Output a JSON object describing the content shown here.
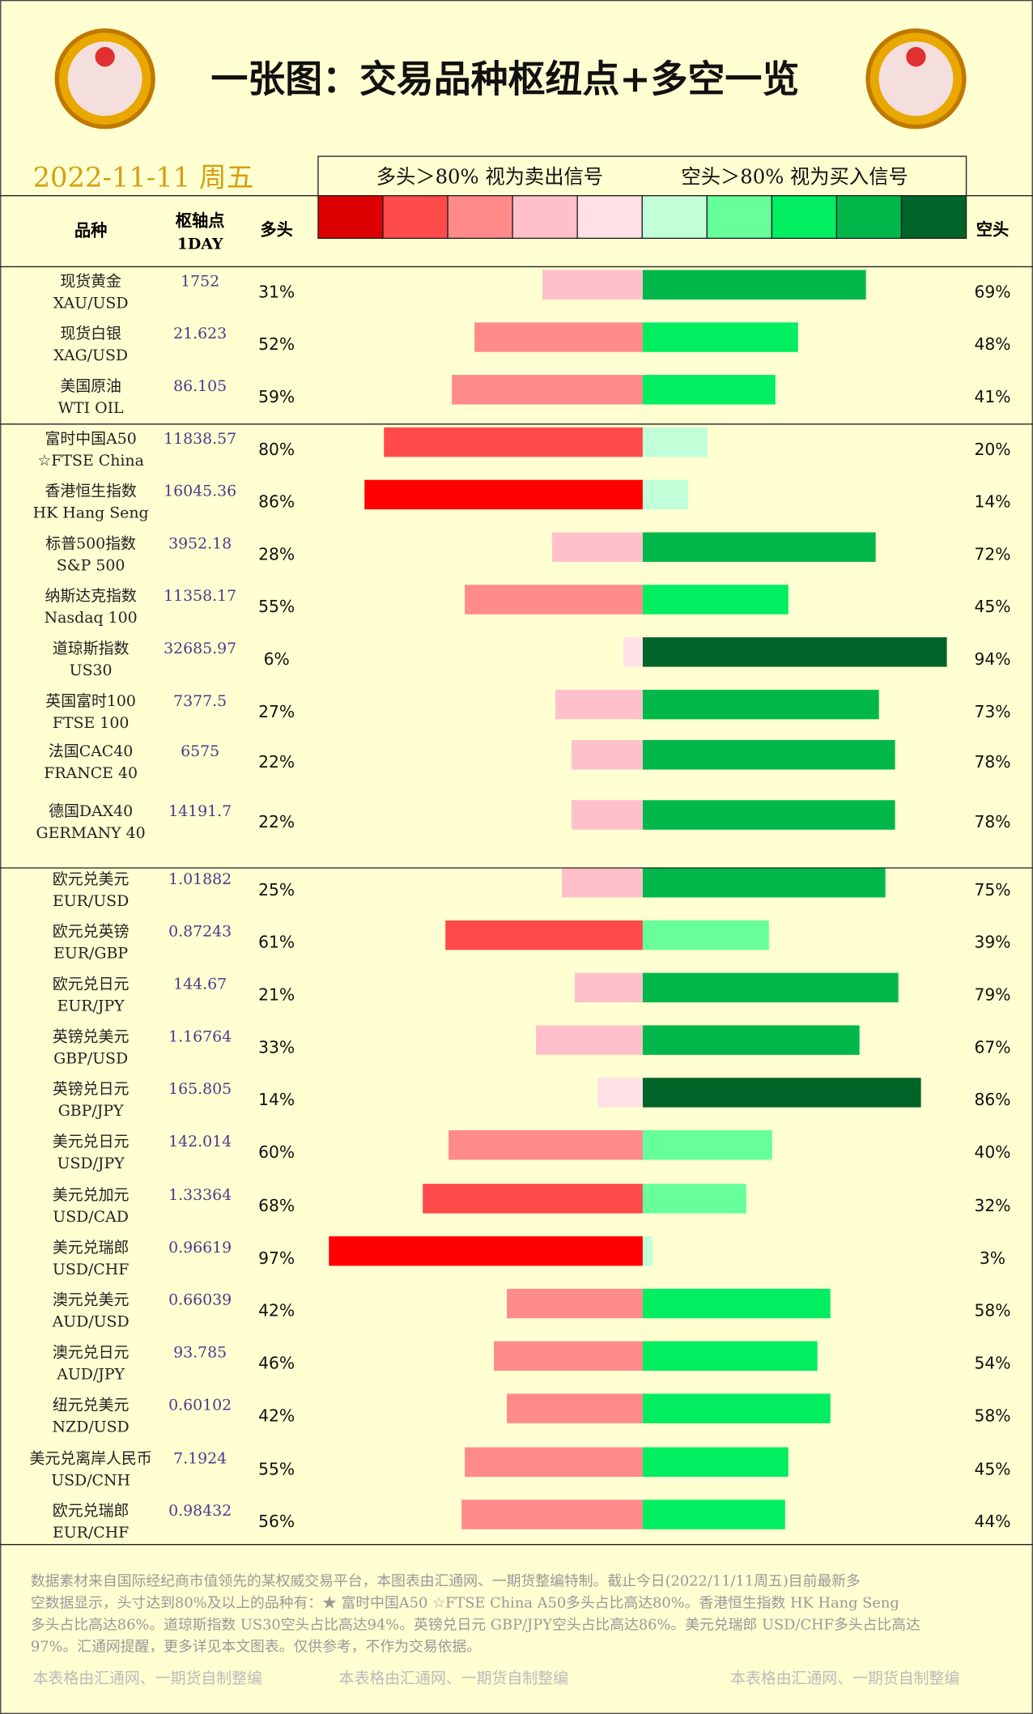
{
  "chart_data": {
    "type": "diverging-bar",
    "title": "一张图：交易品种枢纽点+多空一览",
    "date": "2022-11-11  周五",
    "legend_long": "多头＞80%  视为卖出信号",
    "legend_short": "空头＞80%  视为买入信号",
    "legend_colors": [
      "#dd0000",
      "#ff4a4a",
      "#ff8a8a",
      "#ffc0cb",
      "#ffe0e6",
      "#c0ffd8",
      "#66ff99",
      "#00ee60",
      "#00b84a",
      "#006428"
    ],
    "name_header": "品种",
    "pivot_header": "枢轴点",
    "pivot_period": "1DAY",
    "long_header": "多头",
    "short_header": "空头",
    "xlim": [
      0,
      100
    ],
    "groups": [
      {
        "rows": [
          {
            "name": "现货黄金",
            "code": "XAU/USD",
            "pivot": 1752,
            "long": 31,
            "long_label": "31%",
            "long_color": "#ffc0cb",
            "short": 69,
            "short_label": "69%",
            "short_color": "#00b84a"
          },
          {
            "name": "现货白银",
            "code": "XAG/USD",
            "pivot": 21.623,
            "long": 52,
            "long_label": "52%",
            "long_color": "#ff8a8a",
            "short": 48,
            "short_label": "48%",
            "short_color": "#00ee60"
          },
          {
            "name": "美国原油",
            "code": "WTI OIL",
            "pivot": 86.105,
            "long": 59,
            "long_label": "59%",
            "long_color": "#ff8a8a",
            "short": 41,
            "short_label": "41%",
            "short_color": "#00ee60"
          }
        ]
      },
      {
        "rows": [
          {
            "name": "富时中国A50",
            "code": "☆FTSE China",
            "pivot": 11838.57,
            "long": 80,
            "long_label": "80%",
            "long_color": "#ff4a4a",
            "short": 20,
            "short_label": "20%",
            "short_color": "#c0ffd8"
          },
          {
            "name": "香港恒生指数",
            "code": "HK Hang Seng",
            "pivot": 16045.36,
            "long": 86,
            "long_label": "86%",
            "long_color": "#ff0000",
            "short": 14,
            "short_label": "14%",
            "short_color": "#c0ffd8"
          },
          {
            "name": "标普500指数",
            "code": "S&P 500",
            "pivot": 3952.18,
            "long": 28,
            "long_label": "28%",
            "long_color": "#ffc0cb",
            "short": 72,
            "short_label": "72%",
            "short_color": "#00b84a"
          },
          {
            "name": "纳斯达克指数",
            "code": "Nasdaq 100",
            "pivot": 11358.17,
            "long": 55,
            "long_label": "55%",
            "long_color": "#ff8a8a",
            "short": 45,
            "short_label": "45%",
            "short_color": "#00ee60"
          },
          {
            "name": "道琼斯指数",
            "code": "US30",
            "pivot": 32685.97,
            "long": 6,
            "long_label": "6%",
            "long_color": "#ffe0e6",
            "short": 94,
            "short_label": "94%",
            "short_color": "#006428"
          },
          {
            "name": "英国富时100",
            "code": "FTSE 100",
            "pivot": 7377.5,
            "long": 27,
            "long_label": "27%",
            "long_color": "#ffc0cb",
            "short": 73,
            "short_label": "73%",
            "short_color": "#00b84a"
          },
          {
            "name": "法国CAC40",
            "code": "FRANCE 40",
            "pivot": 6575,
            "long": 22,
            "long_label": "22%",
            "long_color": "#ffc0cb",
            "short": 78,
            "short_label": "78%",
            "short_color": "#00b84a"
          },
          {
            "name": "德国DAX40",
            "code": "GERMANY 40",
            "pivot": 14191.7,
            "long": 22,
            "long_label": "22%",
            "long_color": "#ffc0cb",
            "short": 78,
            "short_label": "78%",
            "short_color": "#00b84a"
          }
        ]
      },
      {
        "rows": [
          {
            "name": "欧元兑美元",
            "code": "EUR/USD",
            "pivot": 1.01882,
            "long": 25,
            "long_label": "25%",
            "long_color": "#ffc0cb",
            "short": 75,
            "short_label": "75%",
            "short_color": "#00b84a"
          },
          {
            "name": "欧元兑英镑",
            "code": "EUR/GBP",
            "pivot": 0.87243,
            "long": 61,
            "long_label": "61%",
            "long_color": "#ff4a4a",
            "short": 39,
            "short_label": "39%",
            "short_color": "#66ff99"
          },
          {
            "name": "欧元兑日元",
            "code": "EUR/JPY",
            "pivot": 144.67,
            "long": 21,
            "long_label": "21%",
            "long_color": "#ffc0cb",
            "short": 79,
            "short_label": "79%",
            "short_color": "#00b84a"
          },
          {
            "name": "英镑兑美元",
            "code": "GBP/USD",
            "pivot": 1.16764,
            "long": 33,
            "long_label": "33%",
            "long_color": "#ffc0cb",
            "short": 67,
            "short_label": "67%",
            "short_color": "#00b84a"
          },
          {
            "name": "英镑兑日元",
            "code": "GBP/JPY",
            "pivot": 165.805,
            "long": 14,
            "long_label": "14%",
            "long_color": "#ffe0e6",
            "short": 86,
            "short_label": "86%",
            "short_color": "#006428"
          },
          {
            "name": "美元兑日元",
            "code": "USD/JPY",
            "pivot": 142.014,
            "long": 60,
            "long_label": "60%",
            "long_color": "#ff8a8a",
            "short": 40,
            "short_label": "40%",
            "short_color": "#66ff99"
          },
          {
            "name": "美元兑加元",
            "code": "USD/CAD",
            "pivot": 1.33364,
            "long": 68,
            "long_label": "68%",
            "long_color": "#ff4a4a",
            "short": 32,
            "short_label": "32%",
            "short_color": "#66ff99"
          },
          {
            "name": "美元兑瑞郎",
            "code": "USD/CHF",
            "pivot": 0.96619,
            "long": 97,
            "long_label": "97%",
            "long_color": "#ff0000",
            "short": 3,
            "short_label": "3%",
            "short_color": "#c0ffd8"
          },
          {
            "name": "澳元兑美元",
            "code": "AUD/USD",
            "pivot": 0.66039,
            "long": 42,
            "long_label": "42%",
            "long_color": "#ff8a8a",
            "short": 58,
            "short_label": "58%",
            "short_color": "#00ee60"
          },
          {
            "name": "澳元兑日元",
            "code": "AUD/JPY",
            "pivot": 93.785,
            "long": 46,
            "long_label": "46%",
            "long_color": "#ff8a8a",
            "short": 54,
            "short_label": "54%",
            "short_color": "#00ee60"
          },
          {
            "name": "纽元兑美元",
            "code": "NZD/USD",
            "pivot": 0.60102,
            "long": 42,
            "long_label": "42%",
            "long_color": "#ff8a8a",
            "short": 58,
            "short_label": "58%",
            "short_color": "#00ee60"
          },
          {
            "name": "美元兑离岸人民币",
            "code": "USD/CNH",
            "pivot": 7.1924,
            "long": 55,
            "long_label": "55%",
            "long_color": "#ff8a8a",
            "short": 45,
            "short_label": "45%",
            "short_color": "#00ee60"
          },
          {
            "name": "欧元兑瑞郎",
            "code": "EUR/CHF",
            "pivot": 0.98432,
            "long": 56,
            "long_label": "56%",
            "long_color": "#ff8a8a",
            "short": 44,
            "short_label": "44%",
            "short_color": "#00ee60"
          }
        ]
      }
    ],
    "footer": [
      "数据素材来自国际经纪商市值领先的某权威交易平台，本图表由汇通网、一期货整编特制。截止今日(2022/11/11周五)目前最新多",
      "空数据显示，头寸达到80%及以上的品种有：★ 富时中国A50 ☆FTSE China A50多头占比高达80%。香港恒生指数 HK Hang Seng",
      "多头占比高达86%。道琼斯指数 US30空头占比高达94%。英镑兑日元 GBP/JPY空头占比高达86%。美元兑瑞郎 USD/CHF多头占比高达",
      "97%。汇通网提醒，更多详见本文图表。仅供参考，不作为交易依据。"
    ],
    "credits": [
      "本表格由汇通网、一期货自制整编",
      "本表格由汇通网、一期货自制整编",
      "本表格由汇通网、一期货自制整编"
    ]
  }
}
